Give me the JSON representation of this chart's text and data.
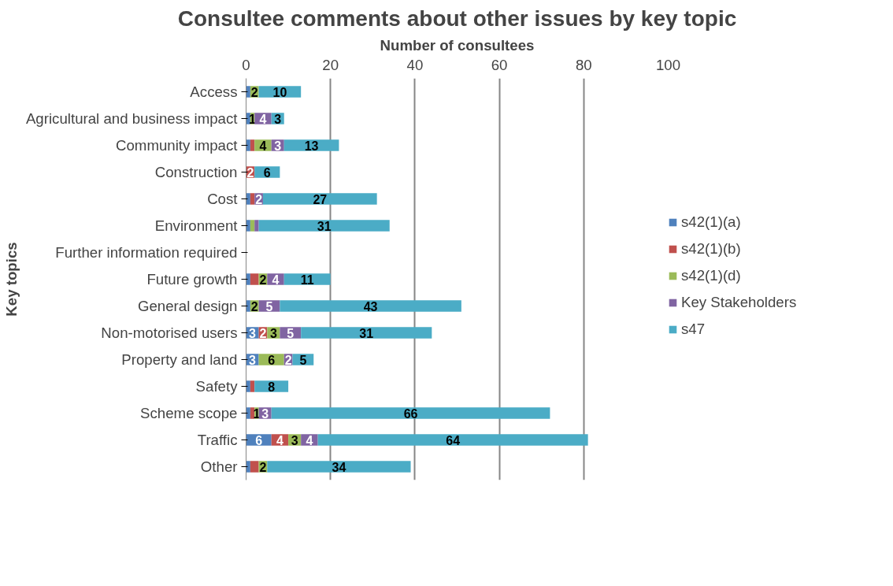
{
  "chart_data": {
    "type": "bar",
    "orientation": "horizontal",
    "stacked": true,
    "title": "Consultee comments about other issues by key topic",
    "xlabel": "Number of consultees",
    "ylabel": "Key topics",
    "categories": [
      "Access",
      "Agricultural and business impact",
      "Community impact",
      "Construction",
      "Cost",
      "Environment",
      "Further information required",
      "Future growth",
      "General design",
      "Non-motorised users",
      "Property and land",
      "Safety",
      "Scheme scope",
      "Traffic",
      "Other"
    ],
    "series": [
      {
        "name": "s42(1)(a)",
        "color": "#4f81bd",
        "values": [
          1,
          1,
          1,
          null,
          1,
          1,
          null,
          1,
          1,
          3,
          3,
          1,
          1,
          6,
          1
        ],
        "value_labels": [
          null,
          null,
          null,
          null,
          null,
          null,
          null,
          null,
          null,
          "3",
          "3",
          null,
          null,
          "6",
          null
        ]
      },
      {
        "name": "s42(1)(b)",
        "color": "#c0504d",
        "values": [
          null,
          null,
          1,
          2,
          1,
          null,
          null,
          2,
          null,
          2,
          null,
          1,
          1,
          4,
          2
        ],
        "value_labels": [
          null,
          null,
          null,
          "2",
          null,
          null,
          null,
          null,
          null,
          "2",
          null,
          null,
          null,
          "4",
          null
        ]
      },
      {
        "name": "s42(1)(d)",
        "color": "#9bbb59",
        "values": [
          2,
          1,
          4,
          null,
          null,
          1,
          null,
          2,
          2,
          3,
          6,
          null,
          1,
          3,
          2
        ],
        "value_labels": [
          "2",
          "1",
          "4",
          null,
          null,
          null,
          null,
          "2",
          "2",
          "3",
          "6",
          null,
          "1",
          "3",
          "2"
        ]
      },
      {
        "name": "Key Stakeholders",
        "color": "#8064a2",
        "values": [
          null,
          4,
          3,
          null,
          2,
          1,
          null,
          4,
          5,
          5,
          2,
          null,
          3,
          4,
          null
        ],
        "value_labels": [
          null,
          "4",
          "3",
          null,
          "2",
          null,
          null,
          "4",
          "5",
          "5",
          "2",
          null,
          "3",
          "4",
          null
        ]
      },
      {
        "name": "s47",
        "color": "#4bacc6",
        "values": [
          10,
          3,
          13,
          6,
          27,
          31,
          null,
          11,
          43,
          31,
          5,
          8,
          66,
          64,
          34
        ],
        "value_labels": [
          "10",
          "3",
          "13",
          "6",
          "27",
          "31",
          null,
          "11",
          "43",
          "31",
          "5",
          "8",
          "66",
          "64",
          "34"
        ]
      }
    ],
    "xlim": [
      0,
      100
    ],
    "xticks": [
      0,
      20,
      40,
      60,
      80,
      100
    ],
    "grid": "x",
    "legend": "right"
  }
}
